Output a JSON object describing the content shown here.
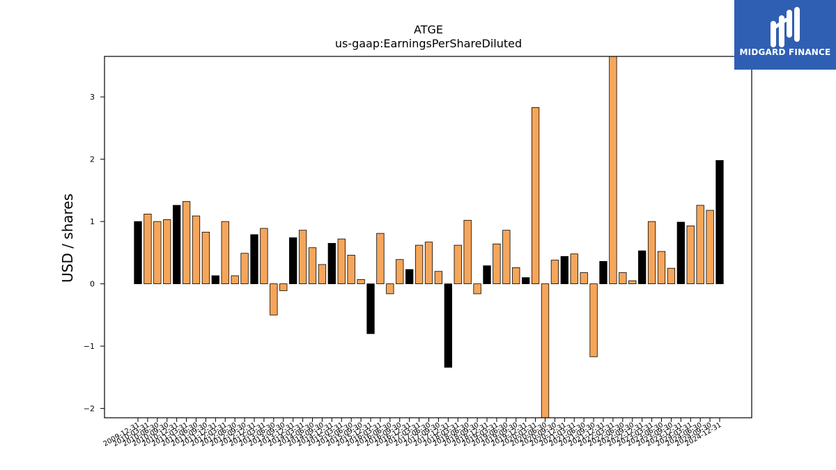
{
  "brand": {
    "name": "MIDGARD FINANCE",
    "bg_color": "#2f5fb3"
  },
  "chart_data": {
    "type": "bar",
    "title": "ATGE",
    "subtitle": "us-gaap:EarningsPerShareDiluted",
    "xlabel": "",
    "ylabel": "USD / shares",
    "ylim": [
      -2.15,
      3.65
    ],
    "yticks": [
      -2,
      -1,
      0,
      1,
      2,
      3
    ],
    "ytick_labels": [
      "−2",
      "−1",
      "0",
      "1",
      "2",
      "3"
    ],
    "grid": false,
    "colors": {
      "annual": "#000000",
      "quarterly": "#f5a65b"
    },
    "categories": [
      "2009-12-31",
      "2010-03-31",
      "2010-06-30",
      "2010-09-30",
      "2010-12-31",
      "2011-03-31",
      "2011-06-30",
      "2011-09-30",
      "2011-12-31",
      "2012-03-31",
      "2012-06-30",
      "2012-09-30",
      "2012-12-31",
      "2013-03-31",
      "2013-06-30",
      "2013-09-30",
      "2013-12-31",
      "2014-03-31",
      "2014-06-30",
      "2014-09-30",
      "2014-12-31",
      "2015-03-31",
      "2015-06-30",
      "2015-09-30",
      "2015-12-31",
      "2016-03-31",
      "2016-06-30",
      "2016-09-30",
      "2016-12-31",
      "2017-03-31",
      "2017-06-30",
      "2017-09-30",
      "2017-12-31",
      "2018-03-31",
      "2018-06-30",
      "2018-09-30",
      "2018-12-31",
      "2019-03-31",
      "2019-06-30",
      "2019-09-30",
      "2019-12-31",
      "2020-03-31",
      "2020-06-30",
      "2020-09-30",
      "2020-12-31",
      "2021-03-31",
      "2021-06-30",
      "2021-09-30",
      "2021-12-31",
      "2022-03-31",
      "2022-06-30",
      "2022-09-30",
      "2022-12-31",
      "2023-03-31",
      "2023-06-30",
      "2023-09-30",
      "2023-12-31",
      "2024-03-31",
      "2024-06-30",
      "2024-09-30",
      "2024-12-31"
    ],
    "values": [
      1.0,
      1.12,
      1.0,
      1.03,
      1.26,
      1.32,
      1.09,
      0.83,
      0.13,
      1.0,
      0.13,
      0.49,
      0.79,
      0.89,
      -0.5,
      -0.11,
      0.74,
      0.86,
      0.58,
      0.31,
      0.65,
      0.72,
      0.46,
      0.07,
      -0.8,
      0.81,
      -0.16,
      0.39,
      0.23,
      0.62,
      0.67,
      0.2,
      -1.34,
      0.62,
      1.02,
      -0.16,
      0.29,
      0.64,
      0.86,
      0.26,
      0.1,
      2.83,
      -2.15,
      0.38,
      0.44,
      0.48,
      0.18,
      -1.17,
      0.36,
      3.65,
      0.18,
      0.05,
      0.53,
      1.0,
      0.52,
      0.25,
      0.99,
      0.93,
      1.26,
      1.18,
      1.98
    ],
    "annual_flags": [
      1,
      0,
      0,
      0,
      1,
      0,
      0,
      0,
      1,
      0,
      0,
      0,
      1,
      0,
      0,
      0,
      1,
      0,
      0,
      0,
      1,
      0,
      0,
      0,
      1,
      0,
      0,
      0,
      1,
      0,
      0,
      0,
      1,
      0,
      0,
      0,
      1,
      0,
      0,
      0,
      1,
      0,
      0,
      0,
      1,
      0,
      0,
      0,
      1,
      0,
      0,
      0,
      1,
      0,
      0,
      0,
      1,
      0,
      0,
      0,
      1
    ]
  }
}
